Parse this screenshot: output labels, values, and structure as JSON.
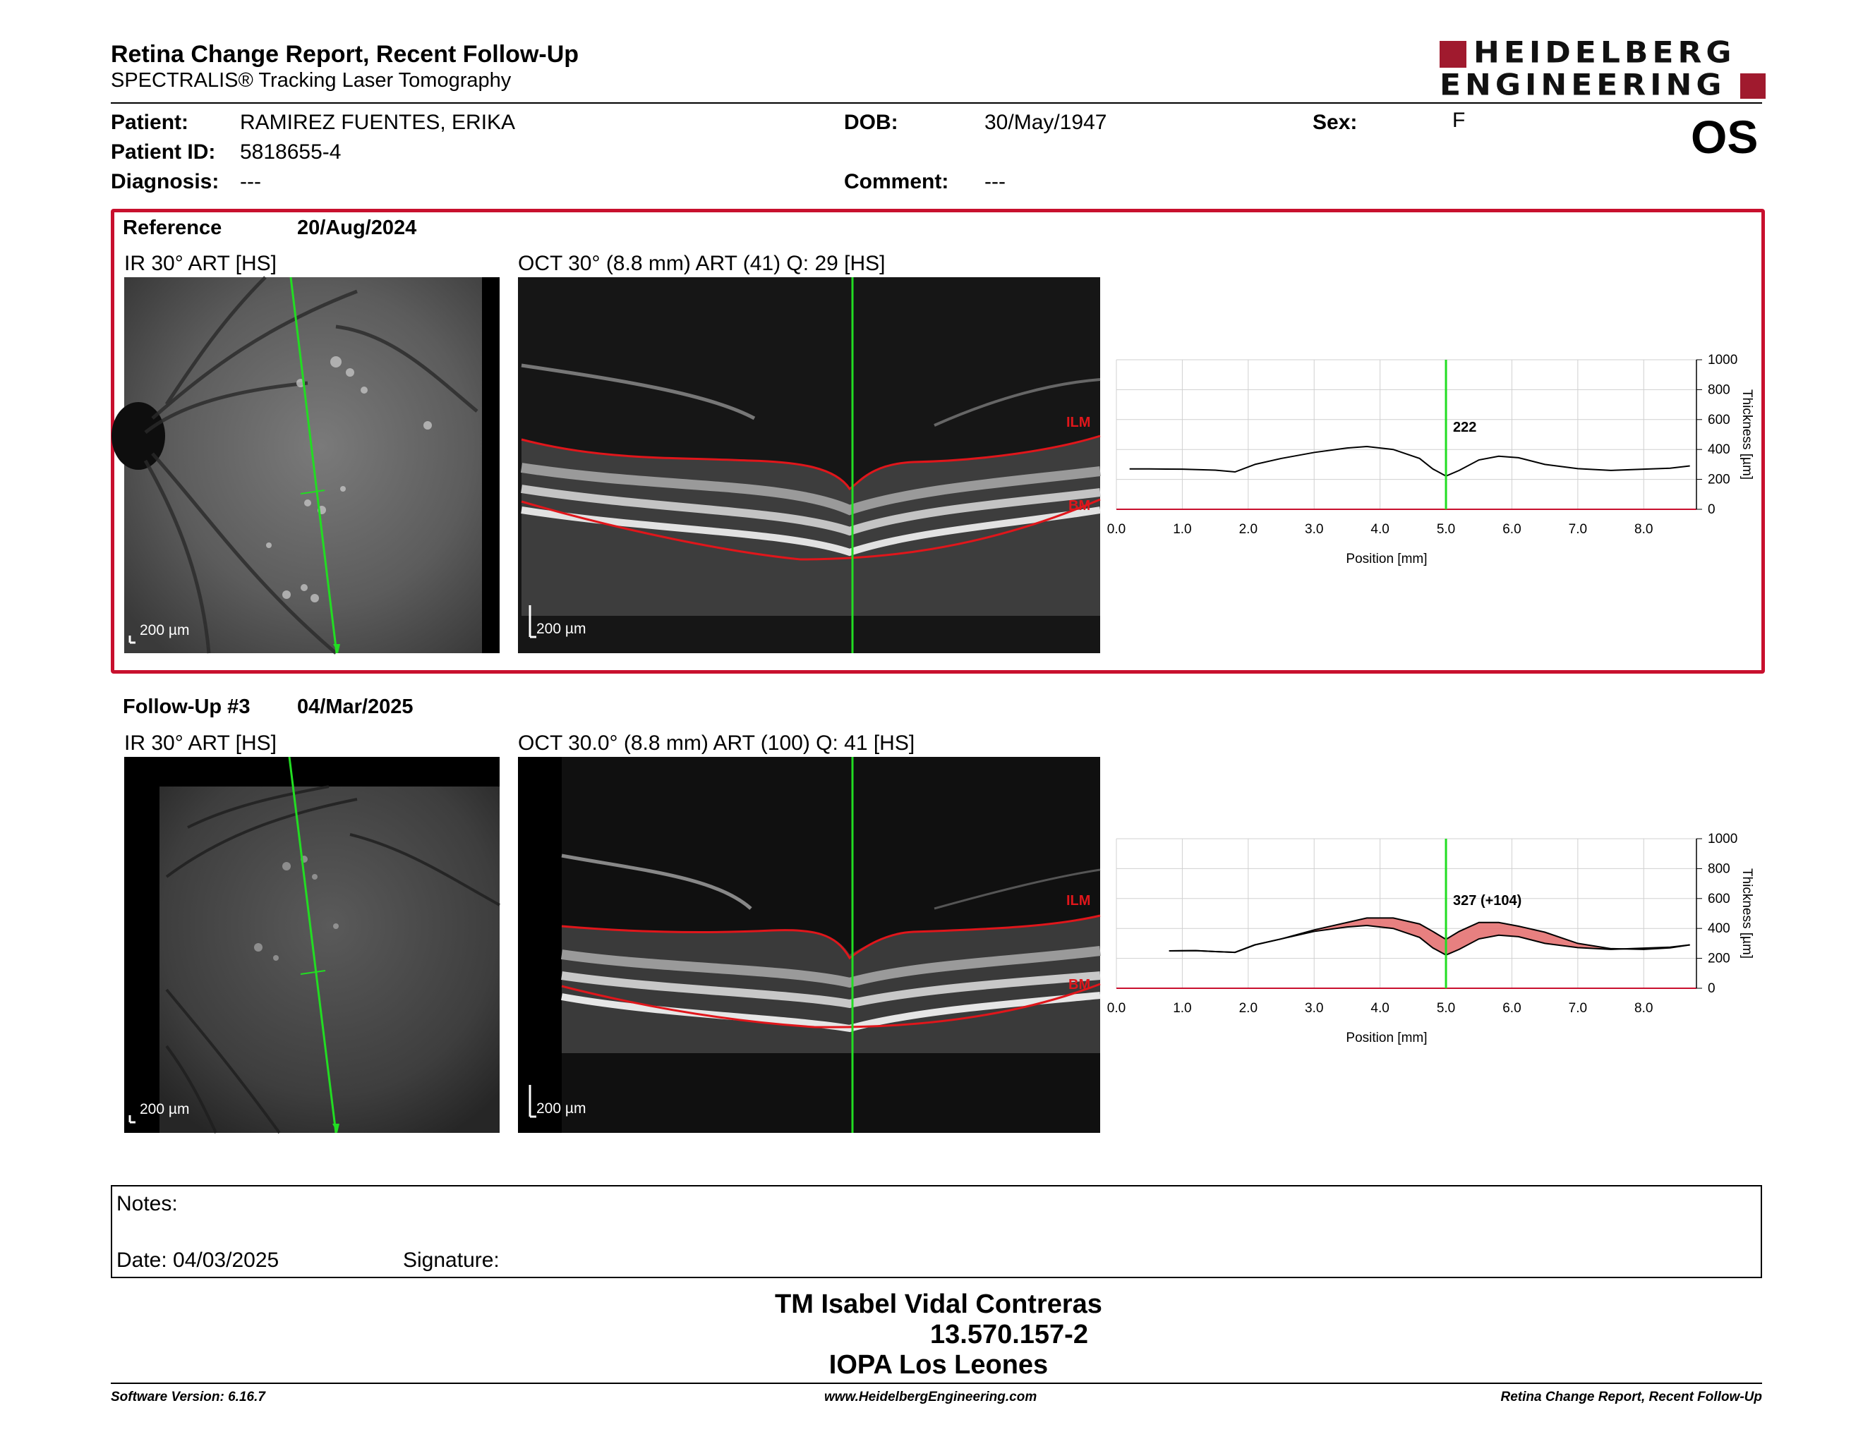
{
  "header": {
    "title": "Retina Change Report, Recent Follow-Up",
    "subtitle": "SPECTRALIS® Tracking Laser Tomography",
    "logo_line1": "HEIDELBERG",
    "logo_line2": "ENGINEERING",
    "brand_color": "#a01a2e"
  },
  "patient": {
    "patient_label": "Patient:",
    "patient_value": "RAMIREZ FUENTES, ERIKA",
    "id_label": "Patient ID:",
    "id_value": "5818655-4",
    "diagnosis_label": "Diagnosis:",
    "diagnosis_value": "---",
    "dob_label": "DOB:",
    "dob_value": "30/May/1947",
    "comment_label": "Comment:",
    "comment_value": "---",
    "sex_label": "Sex:",
    "sex_value": "F",
    "eye": "OS"
  },
  "reference": {
    "label": "Reference",
    "date": "20/Aug/2024",
    "ir_label": "IR 30° ART [HS]",
    "oct_label": "OCT 30° (8.8 mm) ART (41) Q: 29 [HS]",
    "scale": "200 µm",
    "frame_color": "#c8102e"
  },
  "followup": {
    "label": "Follow-Up #3",
    "date": "04/Mar/2025",
    "ir_label": "IR 30° ART [HS]",
    "oct_label": "OCT 30.0° (8.8 mm) ART (100) Q: 41 [HS]",
    "scale": "200 µm"
  },
  "oct_layers": {
    "ilm": "ILM",
    "bm": "BM"
  },
  "chart_data": [
    {
      "type": "line",
      "xlabel": "Position [mm]",
      "ylabel": "Thickness [µm]",
      "xlim": [
        0,
        8.8
      ],
      "ylim": [
        0,
        1000
      ],
      "xticks": [
        "0.0",
        "1.0",
        "2.0",
        "3.0",
        "4.0",
        "5.0",
        "6.0",
        "7.0",
        "8.0"
      ],
      "yticks": [
        "0",
        "200",
        "400",
        "600",
        "800",
        "1000"
      ],
      "grid": true,
      "marker_x": 5.0,
      "marker_label": "222",
      "series": [
        {
          "x": [
            0.2,
            0.5,
            1.0,
            1.5,
            1.8,
            2.1,
            2.5,
            3.0,
            3.5,
            3.8,
            4.2,
            4.6,
            4.8,
            5.0,
            5.2,
            5.5,
            5.8,
            6.1,
            6.5,
            7.0,
            7.5,
            8.0,
            8.4,
            8.7
          ],
          "y": [
            270,
            270,
            268,
            262,
            250,
            300,
            340,
            380,
            410,
            420,
            400,
            340,
            270,
            222,
            260,
            330,
            355,
            345,
            300,
            272,
            260,
            268,
            275,
            290
          ]
        }
      ]
    },
    {
      "type": "area",
      "xlabel": "Position [mm]",
      "ylabel": "Thickness [µm]",
      "xlim": [
        0,
        8.8
      ],
      "ylim": [
        0,
        1000
      ],
      "xticks": [
        "0.0",
        "1.0",
        "2.0",
        "3.0",
        "4.0",
        "5.0",
        "6.0",
        "7.0",
        "8.0"
      ],
      "yticks": [
        "0",
        "200",
        "400",
        "600",
        "800",
        "1000"
      ],
      "grid": true,
      "marker_x": 5.0,
      "marker_label": "327 (+104)",
      "series": [
        {
          "x": [
            0.8,
            1.2,
            1.5,
            1.8,
            2.1,
            2.5,
            3.0,
            3.5,
            3.8,
            4.2,
            4.6,
            4.8,
            5.0,
            5.2,
            5.5,
            5.8,
            6.1,
            6.5,
            7.0,
            7.5,
            8.0,
            8.4,
            8.7
          ],
          "y": [
            250,
            252,
            245,
            240,
            290,
            330,
            390,
            440,
            470,
            470,
            430,
            380,
            327,
            380,
            440,
            440,
            415,
            375,
            300,
            265,
            260,
            270,
            290
          ]
        },
        {
          "x": [
            0.8,
            1.2,
            1.5,
            1.8,
            2.1,
            2.5,
            3.0,
            3.5,
            3.8,
            4.2,
            4.6,
            4.8,
            5.0,
            5.2,
            5.5,
            5.8,
            6.1,
            6.5,
            7.0,
            7.5,
            8.0,
            8.4,
            8.7
          ],
          "y": [
            250,
            252,
            245,
            240,
            290,
            330,
            380,
            410,
            420,
            400,
            340,
            270,
            222,
            260,
            330,
            355,
            345,
            300,
            272,
            260,
            268,
            275,
            290
          ]
        }
      ]
    }
  ],
  "notes": {
    "notes_label": "Notes:",
    "date_label": "Date: 04/03/2025",
    "signature_label": "Signature:"
  },
  "signer": {
    "name": "TM Isabel Vidal Contreras",
    "id": "13.570.157-2",
    "org": "IOPA Los Leones"
  },
  "footer": {
    "software": "Software Version: 6.16.7",
    "website": "www.HeidelbergEngineering.com",
    "report": "Retina Change Report, Recent Follow-Up"
  }
}
